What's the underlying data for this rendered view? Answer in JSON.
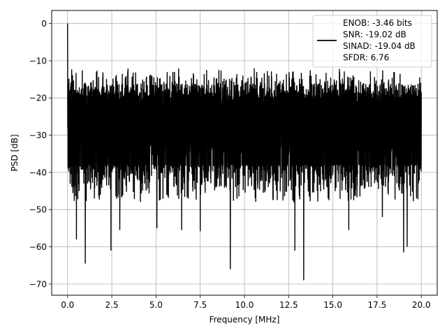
{
  "chart_data": {
    "type": "line",
    "title": "",
    "xlabel": "Frequency [MHz]",
    "ylabel": "PSD [dB]",
    "xlim": [
      -0.9,
      20.9
    ],
    "ylim": [
      -73,
      3.5
    ],
    "xticks": [
      0.0,
      2.5,
      5.0,
      7.5,
      10.0,
      12.5,
      15.0,
      17.5,
      20.0
    ],
    "xtick_labels": [
      "0.0",
      "2.5",
      "5.0",
      "7.5",
      "10.0",
      "12.5",
      "15.0",
      "17.5",
      "20.0"
    ],
    "yticks": [
      0,
      -10,
      -20,
      -30,
      -40,
      -50,
      -60,
      -70
    ],
    "ytick_labels": [
      "0",
      "−10",
      "−20",
      "−30",
      "−40",
      "−50",
      "−60",
      "−70"
    ],
    "grid": true,
    "legend_position": "top-right",
    "legend_lines": [
      "ENOB: -3.46 bits",
      "SNR: -19.02 dB",
      "SINAD: -19.04 dB",
      "SFDR: 6.76"
    ],
    "line_color": "#000000",
    "series": [
      {
        "x_range": [
          0,
          20
        ],
        "peak": {
          "x": 0.0,
          "y": 0
        },
        "upper_envelope_db": [
          -20,
          -13
        ],
        "lower_envelope_db": [
          -48,
          -38
        ],
        "deep_dips": [
          {
            "x": 0.5,
            "y": -58
          },
          {
            "x": 1.0,
            "y": -64.5
          },
          {
            "x": 2.45,
            "y": -61
          },
          {
            "x": 2.95,
            "y": -55.5
          },
          {
            "x": 5.05,
            "y": -55
          },
          {
            "x": 6.45,
            "y": -55.5
          },
          {
            "x": 7.5,
            "y": -55.8
          },
          {
            "x": 9.2,
            "y": -66
          },
          {
            "x": 12.85,
            "y": -61
          },
          {
            "x": 13.35,
            "y": -69
          },
          {
            "x": 15.9,
            "y": -55.5
          },
          {
            "x": 17.8,
            "y": -52
          },
          {
            "x": 19.0,
            "y": -61.5
          },
          {
            "x": 19.2,
            "y": -60
          }
        ]
      }
    ]
  }
}
